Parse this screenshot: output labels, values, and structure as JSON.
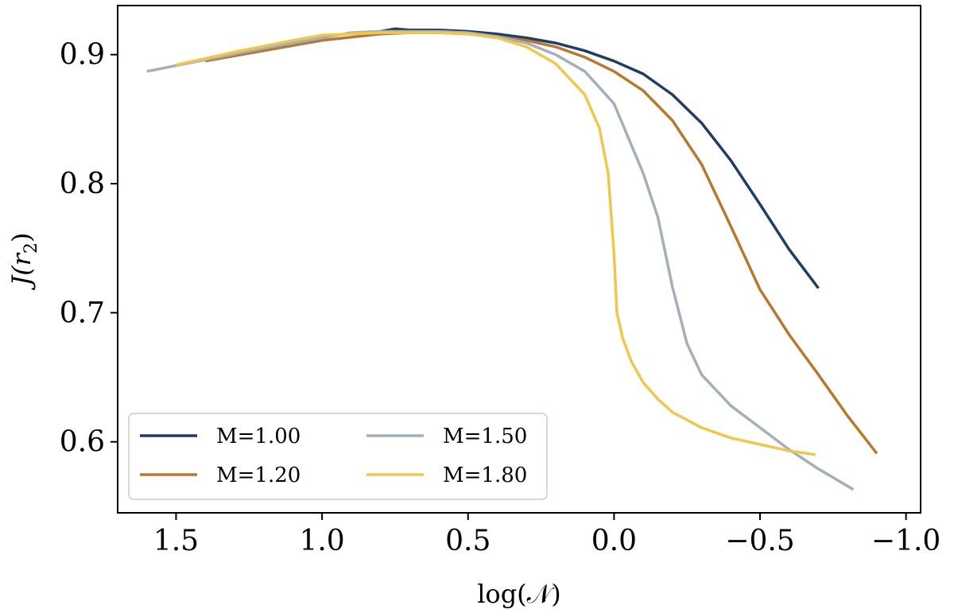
{
  "chart_data": {
    "type": "line",
    "title": "",
    "xlabel": "log(𝒩)",
    "ylabel_main": "J(r",
    "ylabel_sub": "2",
    "ylabel_close": ")",
    "xlim": [
      1.7,
      -1.05
    ],
    "ylim": [
      0.545,
      0.938
    ],
    "x_inverted": true,
    "xticks": [
      1.5,
      1.0,
      0.5,
      0.0,
      -0.5,
      -1.0
    ],
    "xtick_labels": [
      "1.5",
      "1.0",
      "0.5",
      "0.0",
      "−0.5",
      "−1.0"
    ],
    "yticks": [
      0.6,
      0.7,
      0.8,
      0.9
    ],
    "ytick_labels": [
      "0.6",
      "0.7",
      "0.8",
      "0.9"
    ],
    "grid": false,
    "legend_placement": "bottom-left",
    "series": [
      {
        "name": "M=1.00",
        "color": "#1f3d66",
        "x": [
          0.8,
          0.75,
          0.7,
          0.6,
          0.5,
          0.4,
          0.3,
          0.2,
          0.1,
          0.0,
          -0.1,
          -0.2,
          -0.3,
          -0.4,
          -0.5,
          -0.6,
          -0.7
        ],
        "y": [
          0.918,
          0.92,
          0.919,
          0.919,
          0.918,
          0.916,
          0.913,
          0.909,
          0.903,
          0.895,
          0.885,
          0.869,
          0.847,
          0.818,
          0.784,
          0.749,
          0.719
        ]
      },
      {
        "name": "M=1.20",
        "color": "#b8782e",
        "x": [
          1.4,
          1.2,
          1.0,
          0.8,
          0.7,
          0.6,
          0.5,
          0.4,
          0.3,
          0.2,
          0.1,
          0.0,
          -0.1,
          -0.2,
          -0.3,
          -0.4,
          -0.5,
          -0.6,
          -0.7,
          -0.8,
          -0.9
        ],
        "y": [
          0.895,
          0.903,
          0.911,
          0.916,
          0.917,
          0.917,
          0.916,
          0.914,
          0.911,
          0.906,
          0.898,
          0.887,
          0.872,
          0.849,
          0.815,
          0.767,
          0.718,
          0.683,
          0.652,
          0.62,
          0.591
        ]
      },
      {
        "name": "M=1.50",
        "color": "#a3b0bc",
        "x": [
          1.6,
          1.4,
          1.2,
          1.0,
          0.9,
          0.8,
          0.7,
          0.6,
          0.5,
          0.4,
          0.3,
          0.2,
          0.1,
          0.0,
          -0.1,
          -0.15,
          -0.2,
          -0.25,
          -0.3,
          -0.4,
          -0.5,
          -0.6,
          -0.7,
          -0.82
        ],
        "y": [
          0.887,
          0.896,
          0.905,
          0.913,
          0.917,
          0.918,
          0.918,
          0.918,
          0.917,
          0.914,
          0.909,
          0.9,
          0.887,
          0.862,
          0.808,
          0.774,
          0.72,
          0.676,
          0.652,
          0.628,
          0.611,
          0.594,
          0.579,
          0.563
        ]
      },
      {
        "name": "M=1.80",
        "color": "#f0c74c",
        "x": [
          1.5,
          1.3,
          1.1,
          1.0,
          0.9,
          0.8,
          0.7,
          0.6,
          0.5,
          0.4,
          0.3,
          0.2,
          0.1,
          0.05,
          0.02,
          0.0,
          -0.01,
          -0.03,
          -0.06,
          -0.1,
          -0.15,
          -0.2,
          -0.3,
          -0.4,
          -0.5,
          -0.6,
          -0.69
        ],
        "y": [
          0.892,
          0.902,
          0.911,
          0.915,
          0.916,
          0.917,
          0.917,
          0.917,
          0.916,
          0.913,
          0.906,
          0.893,
          0.869,
          0.843,
          0.808,
          0.745,
          0.7,
          0.68,
          0.662,
          0.646,
          0.633,
          0.623,
          0.611,
          0.603,
          0.598,
          0.593,
          0.59
        ]
      }
    ]
  }
}
